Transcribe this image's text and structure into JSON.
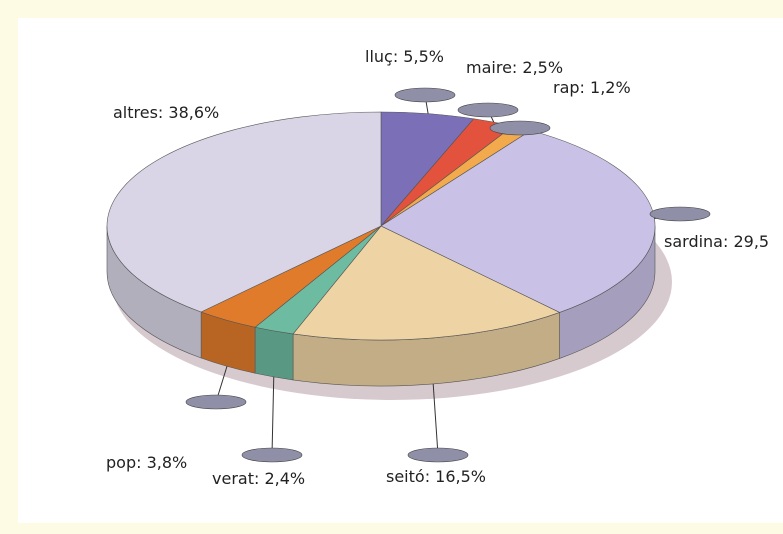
{
  "chart_data": {
    "type": "pie3d",
    "value_labels": [
      "lluç: 5,5%",
      "maire: 2,5%",
      "rap: 1,2%",
      "sardina: 29,5",
      "seitó: 16,5%",
      "verat: 2,4%",
      "pop: 3,8%",
      "altres: 38,6%"
    ],
    "values": [
      5.5,
      2.5,
      1.2,
      29.5,
      16.5,
      2.4,
      3.8,
      38.6
    ],
    "colors": [
      "#7b6fb8",
      "#e2523c",
      "#f2aa4c",
      "#c9c2e6",
      "#eed3a4",
      "#6dbba0",
      "#e07b2c",
      "#d9d5e7"
    ]
  }
}
